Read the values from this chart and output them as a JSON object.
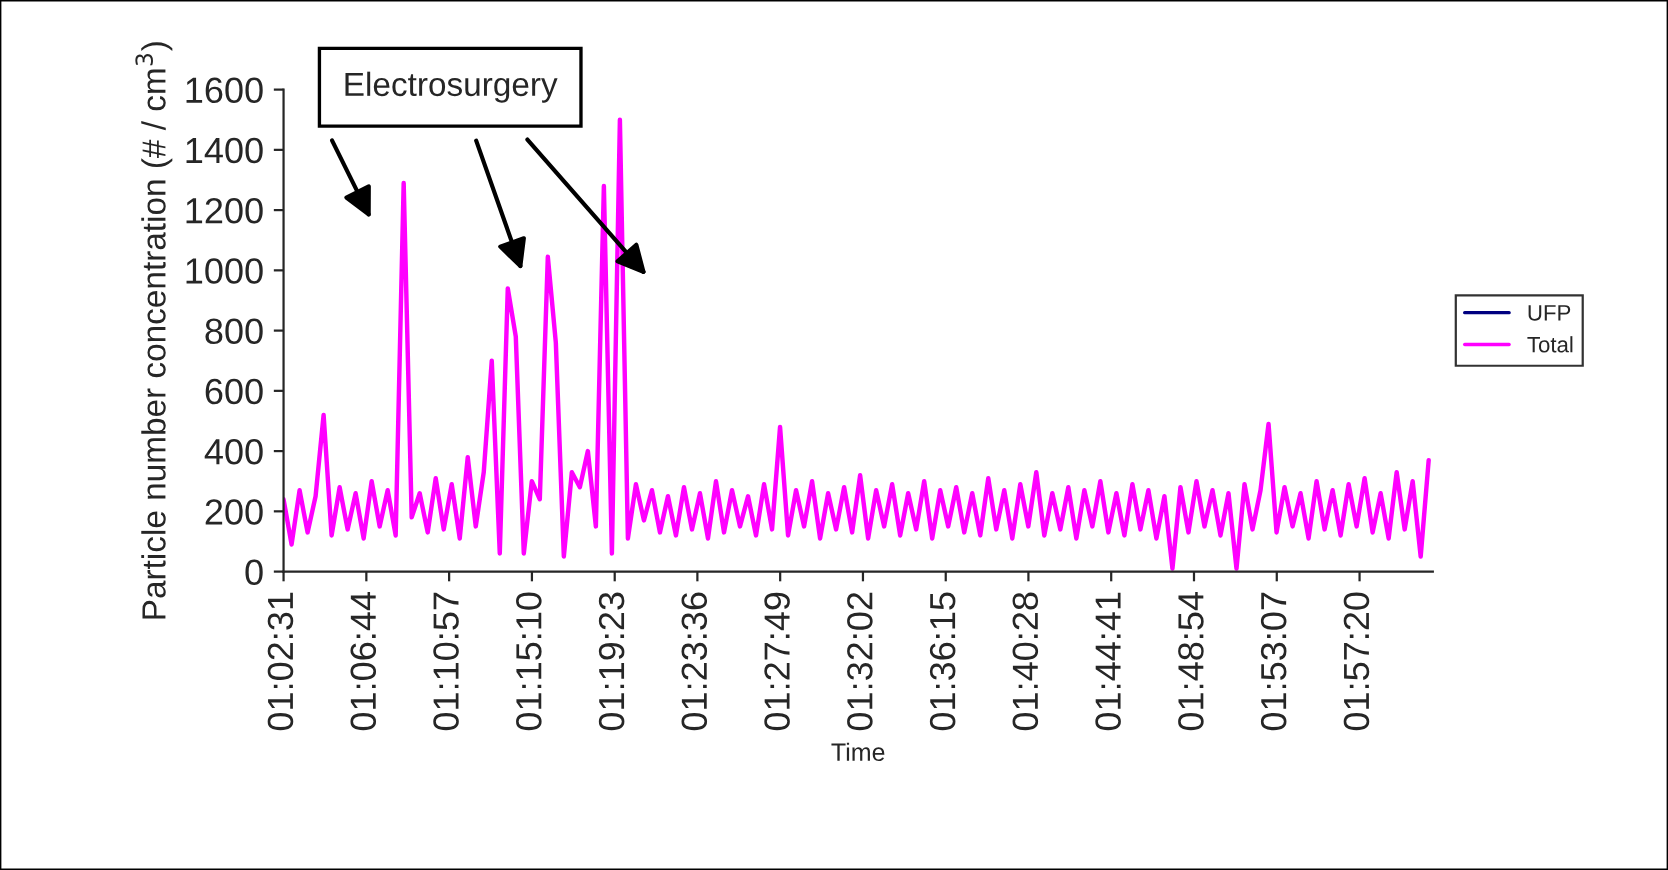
{
  "chart_data": {
    "type": "line",
    "xlabel": "Time",
    "ylabel": "Particle number concentration (# / cm$^{3}$)",
    "annotations": [
      "Electrosurgery"
    ],
    "x": [
      1.0419,
      1.0487,
      1.0555,
      1.0623,
      1.0691,
      1.0759,
      1.0827,
      1.0895,
      1.0963,
      1.1031,
      1.1099,
      1.1167,
      1.1235,
      1.1303,
      1.1371,
      1.1439,
      1.1507,
      1.1575,
      1.1643,
      1.1711,
      1.1779,
      1.1847,
      1.1915,
      1.1983,
      1.2051,
      1.2119,
      1.2187,
      1.2255,
      1.2323,
      1.2391,
      1.2459,
      1.2527,
      1.2595,
      1.2663,
      1.2731,
      1.2799,
      1.2867,
      1.2935,
      1.3003,
      1.3071,
      1.3139,
      1.3207,
      1.3275,
      1.3343,
      1.3411,
      1.3479,
      1.3547,
      1.3615,
      1.3683,
      1.3751,
      1.3819,
      1.3887,
      1.3955,
      1.4023,
      1.4091,
      1.4159,
      1.4227,
      1.4295,
      1.4363,
      1.4431,
      1.4499,
      1.4567,
      1.4635,
      1.4703,
      1.4771,
      1.4839,
      1.4907,
      1.4975,
      1.5043,
      1.5111,
      1.5179,
      1.5247,
      1.5315,
      1.5383,
      1.5451,
      1.5519,
      1.5587,
      1.5655,
      1.5723,
      1.5791,
      1.5859,
      1.5927,
      1.5995,
      1.6063,
      1.6131,
      1.6199,
      1.6267,
      1.6335,
      1.6403,
      1.6471,
      1.6539,
      1.6607,
      1.6675,
      1.6743,
      1.6811,
      1.6879,
      1.6947,
      1.7015,
      1.7083,
      1.7151,
      1.7219,
      1.7287,
      1.7355,
      1.7423,
      1.7491,
      1.7559,
      1.7627,
      1.7695,
      1.7763,
      1.7831,
      1.7899,
      1.7967,
      1.8035,
      1.8103,
      1.8171,
      1.8239,
      1.8307,
      1.8375,
      1.8443,
      1.8511,
      1.8579,
      1.8647,
      1.8715,
      1.8783,
      1.8851,
      1.8919,
      1.8987,
      1.9055,
      1.9123,
      1.9191,
      1.9259,
      1.9327,
      1.9395,
      1.9463,
      1.9531,
      1.9599,
      1.9667,
      1.9735,
      1.9803,
      1.9871,
      1.9939,
      2.0007,
      2.0075,
      2.0143
    ],
    "series": [
      {
        "name": "UFP",
        "color": "#000080",
        "values": [
          null,
          null,
          null,
          null,
          null,
          null,
          null,
          null,
          null,
          null,
          null,
          null,
          null,
          null,
          null,
          null,
          null,
          null,
          null,
          null,
          null,
          null,
          null,
          null,
          null,
          null,
          null,
          null,
          null,
          null,
          null,
          null,
          null,
          null,
          null,
          null,
          null,
          null,
          null,
          null,
          null,
          null,
          null,
          null,
          null,
          null,
          null,
          null,
          null,
          null,
          null,
          null,
          null,
          null,
          null,
          null,
          null,
          null,
          null,
          null,
          null,
          null,
          null,
          null,
          null,
          null,
          null,
          null,
          null,
          null,
          null,
          null,
          null,
          null,
          null,
          null,
          null,
          null,
          null,
          null,
          null,
          null,
          null,
          null,
          null,
          null,
          null,
          null,
          null,
          null,
          null,
          null,
          null,
          null,
          null,
          null,
          null,
          null,
          null,
          null,
          null,
          null,
          null,
          null,
          null,
          null,
          null,
          null,
          null,
          null,
          null,
          null,
          null,
          null,
          null,
          null,
          null,
          null,
          null,
          null,
          null,
          null,
          null,
          null,
          null,
          null,
          null,
          null,
          null,
          null,
          null,
          null,
          null,
          null,
          null,
          null,
          null,
          null,
          null,
          null,
          null,
          null,
          null,
          null
        ]
      },
      {
        "name": "Total",
        "color": "#ff00ff",
        "values": [
          240,
          90,
          270,
          130,
          250,
          520,
          120,
          280,
          140,
          260,
          110,
          300,
          150,
          270,
          120,
          1290,
          180,
          260,
          130,
          310,
          140,
          290,
          110,
          380,
          150,
          330,
          700,
          60,
          940,
          780,
          60,
          300,
          240,
          1045,
          760,
          50,
          330,
          280,
          400,
          150,
          1280,
          60,
          1500,
          110,
          290,
          170,
          270,
          130,
          250,
          120,
          280,
          140,
          260,
          110,
          300,
          130,
          270,
          150,
          250,
          120,
          290,
          140,
          480,
          120,
          270,
          150,
          300,
          110,
          260,
          140,
          280,
          130,
          320,
          110,
          270,
          150,
          290,
          120,
          260,
          140,
          300,
          110,
          270,
          150,
          280,
          130,
          260,
          120,
          310,
          140,
          270,
          110,
          290,
          150,
          330,
          120,
          260,
          140,
          280,
          110,
          270,
          150,
          300,
          130,
          260,
          120,
          290,
          140,
          270,
          110,
          250,
          10,
          280,
          130,
          300,
          150,
          270,
          120,
          260,
          10,
          290,
          140,
          270,
          490,
          130,
          280,
          150,
          260,
          110,
          300,
          140,
          270,
          120,
          290,
          150,
          310,
          130,
          260,
          110,
          330,
          140,
          300,
          50,
          370
        ]
      }
    ],
    "xlim": [
      1.0419,
      2.0178
    ],
    "xticks": [
      {
        "value": 1.0419,
        "label": "01:02:31"
      },
      {
        "value": 1.1122,
        "label": "01:06:44"
      },
      {
        "value": 1.1825,
        "label": "01:10:57"
      },
      {
        "value": 1.2528,
        "label": "01:15:10"
      },
      {
        "value": 1.3231,
        "label": "01:19:23"
      },
      {
        "value": 1.3933,
        "label": "01:23:36"
      },
      {
        "value": 1.4636,
        "label": "01:27:49"
      },
      {
        "value": 1.5339,
        "label": "01:32:02"
      },
      {
        "value": 1.6042,
        "label": "01:36:15"
      },
      {
        "value": 1.6744,
        "label": "01:40:28"
      },
      {
        "value": 1.7447,
        "label": "01:44:41"
      },
      {
        "value": 1.815,
        "label": "01:48:54"
      },
      {
        "value": 1.8853,
        "label": "01:53:07"
      },
      {
        "value": 1.9556,
        "label": "01:57:20"
      }
    ],
    "ylim": [
      0,
      1600
    ],
    "yticks": [
      0,
      200,
      400,
      600,
      800,
      1000,
      1200,
      1400,
      1600
    ],
    "grid": false,
    "legend": "right"
  }
}
